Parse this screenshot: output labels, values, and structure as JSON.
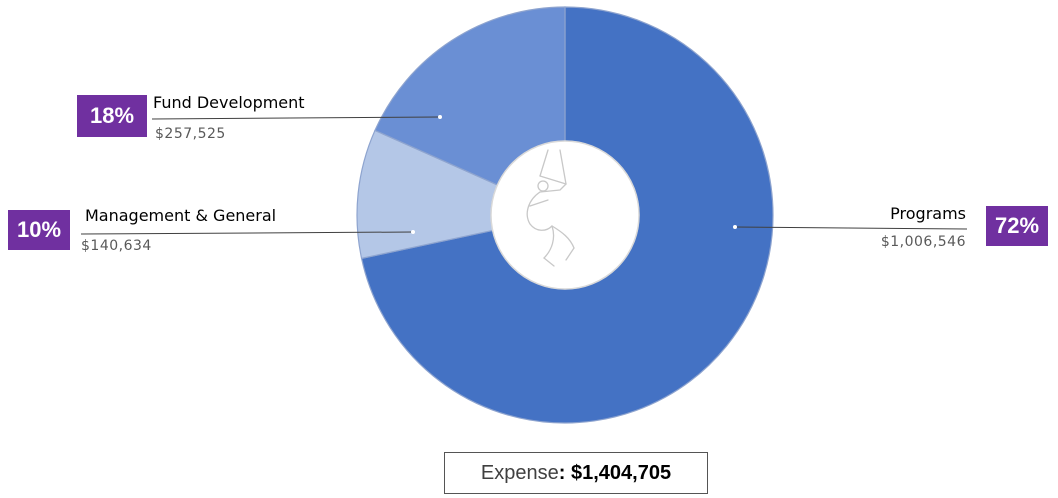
{
  "chart_data": {
    "type": "pie",
    "title": "",
    "variant": "donut",
    "slices": [
      {
        "label": "Programs",
        "value": 1006546,
        "value_text": "$1,006,546",
        "percent": 72,
        "percent_text": "72%",
        "color": "#4472c4"
      },
      {
        "label": "Management & General",
        "value": 140634,
        "value_text": "$140,634",
        "percent": 10,
        "percent_text": "10%",
        "color": "#b4c7e7"
      },
      {
        "label": "Fund Development",
        "value": 257525,
        "value_text": "$257,525",
        "percent": 18,
        "percent_text": "18%",
        "color": "#6a8fd4"
      }
    ],
    "total": {
      "label": "Expense",
      "separator": ": ",
      "value_text": "$1,404,705",
      "value": 1404705
    },
    "center_image": "trapeze-performer-silhouette",
    "badge_color": "#7030a0"
  }
}
